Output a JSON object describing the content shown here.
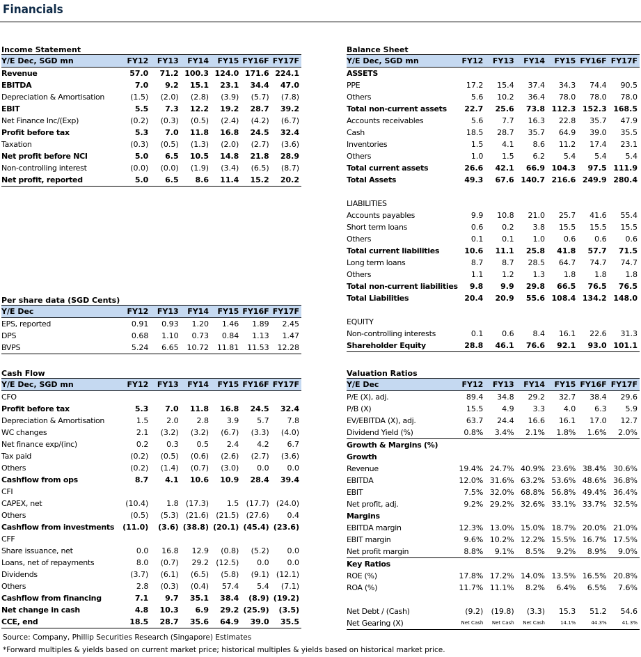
{
  "page_title": "Financials",
  "income": {
    "title": "Income Statement",
    "header": [
      "Y/E Dec, SGD mn",
      "FY12",
      "FY13",
      "FY14",
      "FY15",
      "FY16F",
      "FY17F"
    ],
    "rows": [
      {
        "label": "Revenue",
        "values": [
          "57.0",
          "71.2",
          "100.3",
          "124.0",
          "171.6",
          "224.1"
        ],
        "bold": true
      },
      {
        "label": "EBITDA",
        "values": [
          "7.0",
          "9.2",
          "15.1",
          "23.1",
          "34.4",
          "47.0"
        ],
        "bold": true
      },
      {
        "label": "Depreciation & Amortisation",
        "values": [
          "(1.5)",
          "(2.0)",
          "(2.8)",
          "(3.9)",
          "(5.7)",
          "(7.8)"
        ]
      },
      {
        "label": "EBIT",
        "values": [
          "5.5",
          "7.3",
          "12.2",
          "19.2",
          "28.7",
          "39.2"
        ],
        "bold": true
      },
      {
        "label": "Net Finance Inc/(Exp)",
        "values": [
          "(0.2)",
          "(0.3)",
          "(0.5)",
          "(2.4)",
          "(4.2)",
          "(6.7)"
        ]
      },
      {
        "label": "Profit before tax",
        "values": [
          "5.3",
          "7.0",
          "11.8",
          "16.8",
          "24.5",
          "32.4"
        ],
        "bold": true
      },
      {
        "label": "Taxation",
        "values": [
          "(0.3)",
          "(0.5)",
          "(1.3)",
          "(2.0)",
          "(2.7)",
          "(3.6)"
        ]
      },
      {
        "label": "Net profit before NCI",
        "values": [
          "5.0",
          "6.5",
          "10.5",
          "14.8",
          "21.8",
          "28.9"
        ],
        "bold": true
      },
      {
        "label": "Non-controlling interest",
        "values": [
          "(0.0)",
          "(0.0)",
          "(1.9)",
          "(3.4)",
          "(6.5)",
          "(8.7)"
        ]
      },
      {
        "label": "Net profit, reported",
        "values": [
          "5.0",
          "6.5",
          "8.6",
          "11.4",
          "15.2",
          "20.2"
        ],
        "bold": true
      }
    ]
  },
  "pershare": {
    "title": "Per share data (SGD Cents)",
    "header": [
      "Y/E Dec",
      "FY12",
      "FY13",
      "FY14",
      "FY15",
      "FY16F",
      "FY17F"
    ],
    "rows": [
      {
        "label": "EPS, reported",
        "values": [
          "0.91",
          "0.93",
          "1.20",
          "1.46",
          "1.89",
          "2.45"
        ]
      },
      {
        "label": "DPS",
        "values": [
          "0.68",
          "1.10",
          "0.73",
          "0.84",
          "1.13",
          "1.47"
        ]
      },
      {
        "label": "BVPS",
        "values": [
          "5.24",
          "6.65",
          "10.72",
          "11.81",
          "11.53",
          "12.28"
        ]
      }
    ]
  },
  "cashflow": {
    "title": "Cash Flow",
    "header": [
      "Y/E Dec, SGD mn",
      "FY12",
      "FY13",
      "FY14",
      "FY15",
      "FY16F",
      "FY17F"
    ],
    "rows": [
      {
        "label": "CFO",
        "values": [
          "",
          "",
          "",
          "",
          "",
          ""
        ]
      },
      {
        "label": "Profit before tax",
        "values": [
          "5.3",
          "7.0",
          "11.8",
          "16.8",
          "24.5",
          "32.4"
        ],
        "bold": true
      },
      {
        "label": "Depreciation & Amortisation",
        "values": [
          "1.5",
          "2.0",
          "2.8",
          "3.9",
          "5.7",
          "7.8"
        ]
      },
      {
        "label": "WC changes",
        "values": [
          "2.1",
          "(3.2)",
          "(3.2)",
          "(6.7)",
          "(3.3)",
          "(4.0)"
        ]
      },
      {
        "label": "Net finance exp/(inc)",
        "values": [
          "0.2",
          "0.3",
          "0.5",
          "2.4",
          "4.2",
          "6.7"
        ]
      },
      {
        "label": "Tax paid",
        "values": [
          "(0.2)",
          "(0.5)",
          "(0.6)",
          "(2.6)",
          "(2.7)",
          "(3.6)"
        ]
      },
      {
        "label": "Others",
        "values": [
          "(0.2)",
          "(1.4)",
          "(0.7)",
          "(3.0)",
          "0.0",
          "0.0"
        ]
      },
      {
        "label": "Cashflow from ops",
        "values": [
          "8.7",
          "4.1",
          "10.6",
          "10.9",
          "28.4",
          "39.4"
        ],
        "bold": true
      },
      {
        "label": "CFI",
        "values": [
          "",
          "",
          "",
          "",
          "",
          ""
        ]
      },
      {
        "label": "CAPEX, net",
        "values": [
          "(10.4)",
          "1.8",
          "(17.3)",
          "1.5",
          "(17.7)",
          "(24.0)"
        ]
      },
      {
        "label": "Others",
        "values": [
          "(0.5)",
          "(5.3)",
          "(21.6)",
          "(21.5)",
          "(27.6)",
          "0.4"
        ]
      },
      {
        "label": "Cashflow from investments",
        "values": [
          "(11.0)",
          "(3.6)",
          "(38.8)",
          "(20.1)",
          "(45.4)",
          "(23.6)"
        ],
        "bold": true
      },
      {
        "label": "CFF",
        "values": [
          "",
          "",
          "",
          "",
          "",
          ""
        ]
      },
      {
        "label": "Share issuance, net",
        "values": [
          "0.0",
          "16.8",
          "12.9",
          "(0.8)",
          "(5.2)",
          "0.0"
        ]
      },
      {
        "label": "Loans, net of repayments",
        "values": [
          "8.0",
          "(0.7)",
          "29.2",
          "(12.5)",
          "0.0",
          "0.0"
        ]
      },
      {
        "label": "Dividends",
        "values": [
          "(3.7)",
          "(6.1)",
          "(6.5)",
          "(5.8)",
          "(9.1)",
          "(12.1)"
        ]
      },
      {
        "label": "Others",
        "values": [
          "2.8",
          "(0.3)",
          "(0.4)",
          "57.4",
          "5.4",
          "(7.1)"
        ]
      },
      {
        "label": "Cashflow from financing",
        "values": [
          "7.1",
          "9.7",
          "35.1",
          "38.4",
          "(8.9)",
          "(19.2)"
        ],
        "bold": true
      },
      {
        "label": "Net change in cash",
        "values": [
          "4.8",
          "10.3",
          "6.9",
          "29.2",
          "(25.9)",
          "(3.5)"
        ],
        "bold": true
      },
      {
        "label": "CCE, end",
        "values": [
          "18.5",
          "28.7",
          "35.6",
          "64.9",
          "39.0",
          "35.5"
        ],
        "bold": true
      }
    ]
  },
  "balance": {
    "title": "Balance Sheet",
    "header": [
      "Y/E Dec, SGD mn",
      "FY12",
      "FY13",
      "FY14",
      "FY15",
      "FY16F",
      "FY17F"
    ],
    "rows": [
      {
        "label": "ASSETS",
        "values": [
          "",
          "",
          "",
          "",
          "",
          ""
        ],
        "bold": true
      },
      {
        "label": "PPE",
        "values": [
          "17.2",
          "15.4",
          "37.4",
          "34.3",
          "74.4",
          "90.5"
        ]
      },
      {
        "label": "Others",
        "values": [
          "5.6",
          "10.2",
          "36.4",
          "78.0",
          "78.0",
          "78.0"
        ]
      },
      {
        "label": "Total non-current assets",
        "values": [
          "22.7",
          "25.6",
          "73.8",
          "112.3",
          "152.3",
          "168.5"
        ],
        "bold": true
      },
      {
        "label": "Accounts receivables",
        "values": [
          "5.6",
          "7.7",
          "16.3",
          "22.8",
          "35.7",
          "47.9"
        ]
      },
      {
        "label": "Cash",
        "values": [
          "18.5",
          "28.7",
          "35.7",
          "64.9",
          "39.0",
          "35.5"
        ]
      },
      {
        "label": "Inventories",
        "values": [
          "1.5",
          "4.1",
          "8.6",
          "11.2",
          "17.4",
          "23.1"
        ]
      },
      {
        "label": "Others",
        "values": [
          "1.0",
          "1.5",
          "6.2",
          "5.4",
          "5.4",
          "5.4"
        ]
      },
      {
        "label": "Total current assets",
        "values": [
          "26.6",
          "42.1",
          "66.9",
          "104.3",
          "97.5",
          "111.9"
        ],
        "bold": true
      },
      {
        "label": "Total Assets",
        "values": [
          "49.3",
          "67.6",
          "140.7",
          "216.6",
          "249.9",
          "280.4"
        ],
        "bold": true
      },
      {
        "label": "",
        "values": [
          "",
          "",
          "",
          "",
          "",
          ""
        ]
      },
      {
        "label": "LIABILITIES",
        "values": [
          "",
          "",
          "",
          "",
          "",
          ""
        ]
      },
      {
        "label": "Accounts payables",
        "values": [
          "9.9",
          "10.8",
          "21.0",
          "25.7",
          "41.6",
          "55.4"
        ]
      },
      {
        "label": "Short term loans",
        "values": [
          "0.6",
          "0.2",
          "3.8",
          "15.5",
          "15.5",
          "15.5"
        ]
      },
      {
        "label": "Others",
        "values": [
          "0.1",
          "0.1",
          "1.0",
          "0.6",
          "0.6",
          "0.6"
        ]
      },
      {
        "label": "Total current liabilities",
        "values": [
          "10.6",
          "11.1",
          "25.8",
          "41.8",
          "57.7",
          "71.5"
        ],
        "bold": true
      },
      {
        "label": "Long term loans",
        "values": [
          "8.7",
          "8.7",
          "28.5",
          "64.7",
          "74.7",
          "74.7"
        ]
      },
      {
        "label": "Others",
        "values": [
          "1.1",
          "1.2",
          "1.3",
          "1.8",
          "1.8",
          "1.8"
        ]
      },
      {
        "label": "Total non-current liabilities",
        "values": [
          "9.8",
          "9.9",
          "29.8",
          "66.5",
          "76.5",
          "76.5"
        ],
        "bold": true
      },
      {
        "label": "Total Liabilities",
        "values": [
          "20.4",
          "20.9",
          "55.6",
          "108.4",
          "134.2",
          "148.0"
        ],
        "bold": true
      },
      {
        "label": "",
        "values": [
          "",
          "",
          "",
          "",
          "",
          ""
        ]
      },
      {
        "label": "EQUITY",
        "values": [
          "",
          "",
          "",
          "",
          "",
          ""
        ]
      },
      {
        "label": "Non-controlling interests",
        "values": [
          "0.1",
          "0.6",
          "8.4",
          "16.1",
          "22.6",
          "31.3"
        ]
      },
      {
        "label": "Shareholder Equity",
        "values": [
          "28.8",
          "46.1",
          "76.6",
          "92.1",
          "93.0",
          "101.1"
        ],
        "bold": true
      }
    ]
  },
  "valuation": {
    "title": "Valuation Ratios",
    "header": [
      "Y/E Dec",
      "FY12",
      "FY13",
      "FY14",
      "FY15",
      "FY16F",
      "FY17F"
    ],
    "rows": [
      {
        "label": "P/E (X), adj.",
        "values": [
          "89.4",
          "34.8",
          "29.2",
          "32.7",
          "38.4",
          "29.6"
        ]
      },
      {
        "label": "P/B (X)",
        "values": [
          "15.5",
          "4.9",
          "3.3",
          "4.0",
          "6.3",
          "5.9"
        ]
      },
      {
        "label": "EV/EBITDA (X), adj.",
        "values": [
          "63.7",
          "24.4",
          "16.6",
          "16.1",
          "17.0",
          "12.7"
        ]
      },
      {
        "label": "Dividend Yield (%)",
        "values": [
          "0.8%",
          "3.4%",
          "2.1%",
          "1.8%",
          "1.6%",
          "2.0%"
        ],
        "last": true
      },
      {
        "label": "Growth & Margins (%)",
        "values": [
          "",
          "",
          "",
          "",
          "",
          ""
        ],
        "bold": true
      },
      {
        "label": "Growth",
        "values": [
          "",
          "",
          "",
          "",
          "",
          ""
        ],
        "bold": true
      },
      {
        "label": "Revenue",
        "values": [
          "19.4%",
          "24.7%",
          "40.9%",
          "23.6%",
          "38.4%",
          "30.6%"
        ]
      },
      {
        "label": "EBITDA",
        "values": [
          "12.0%",
          "31.6%",
          "63.2%",
          "53.6%",
          "48.6%",
          "36.8%"
        ]
      },
      {
        "label": "EBIT",
        "values": [
          "7.5%",
          "32.0%",
          "68.8%",
          "56.8%",
          "49.4%",
          "36.4%"
        ]
      },
      {
        "label": "Net profit, adj.",
        "values": [
          "9.2%",
          "29.2%",
          "32.6%",
          "33.1%",
          "33.7%",
          "32.5%"
        ]
      },
      {
        "label": "Margins",
        "values": [
          "",
          "",
          "",
          "",
          "",
          ""
        ],
        "bold": true
      },
      {
        "label": "EBITDA margin",
        "values": [
          "12.3%",
          "13.0%",
          "15.0%",
          "18.7%",
          "20.0%",
          "21.0%"
        ]
      },
      {
        "label": "EBIT margin",
        "values": [
          "9.6%",
          "10.2%",
          "12.2%",
          "15.5%",
          "16.7%",
          "17.5%"
        ]
      },
      {
        "label": "Net profit margin",
        "values": [
          "8.8%",
          "9.1%",
          "8.5%",
          "9.2%",
          "8.9%",
          "9.0%"
        ],
        "last": true
      },
      {
        "label": "Key Ratios",
        "values": [
          "",
          "",
          "",
          "",
          "",
          ""
        ],
        "bold": true
      },
      {
        "label": "ROE (%)",
        "values": [
          "17.8%",
          "17.2%",
          "14.0%",
          "13.5%",
          "16.5%",
          "20.8%"
        ]
      },
      {
        "label": "ROA (%)",
        "values": [
          "11.7%",
          "11.1%",
          "8.2%",
          "6.4%",
          "6.5%",
          "7.6%"
        ]
      },
      {
        "label": "",
        "values": [
          "",
          "",
          "",
          "",
          "",
          ""
        ]
      },
      {
        "label": "Net Debt / (Cash)",
        "values": [
          "(9.2)",
          "(19.8)",
          "(3.3)",
          "15.3",
          "51.2",
          "54.6"
        ]
      },
      {
        "label": "Net Gearing (X)",
        "values": [
          "Net Cash",
          "Net Cash",
          "Net Cash",
          "14.1%",
          "44.3%",
          "41.3%"
        ],
        "tiny": true,
        "last": true
      }
    ]
  },
  "footer": {
    "source": "Source: Company, Phillip Securities Research (Singapore) Estimates",
    "note": "*Forward multiples & yields based on current market price; historical multiples & yields based on historical market price."
  }
}
